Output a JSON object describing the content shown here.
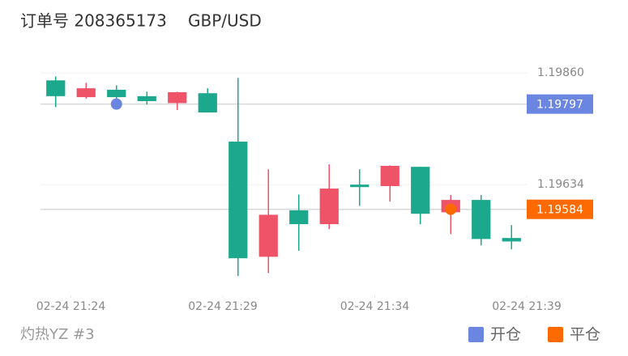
{
  "header": {
    "order": "订单号 208365173",
    "symbol": "GBP/USD"
  },
  "footer": {
    "account": "灼热YZ #3"
  },
  "chart_data": {
    "type": "candlestick",
    "x": [
      0,
      1,
      2,
      3,
      4,
      5,
      6,
      7,
      8,
      9,
      10,
      11,
      12,
      13,
      14,
      15
    ],
    "open": [
      1.19813,
      1.19829,
      1.19811,
      1.19803,
      1.19821,
      1.1978,
      1.19485,
      1.19573,
      1.19554,
      1.19626,
      1.19629,
      1.19672,
      1.19575,
      1.19603,
      1.19524,
      1.19519
    ],
    "high": [
      1.19853,
      1.1984,
      1.19835,
      1.19822,
      1.19822,
      1.19829,
      1.1985,
      1.19665,
      1.19614,
      1.19675,
      1.19665,
      1.19673,
      1.1967,
      1.19613,
      1.19613,
      1.19552
    ],
    "low": [
      1.19791,
      1.19808,
      1.19804,
      1.19796,
      1.19785,
      1.1978,
      1.19449,
      1.19455,
      1.195,
      1.19544,
      1.19591,
      1.196,
      1.19554,
      1.19534,
      1.19511,
      1.19503
    ],
    "close": [
      1.19845,
      1.19811,
      1.19826,
      1.19813,
      1.19799,
      1.19819,
      1.19721,
      1.19488,
      1.19582,
      1.19554,
      1.19634,
      1.19631,
      1.1967,
      1.19578,
      1.19603,
      1.19526
    ],
    "up_color": "#1ba88c",
    "down_color": "#ee5367",
    "xlim": [
      -0.5,
      15.5
    ],
    "xticks": [
      {
        "value": 0.5,
        "label": "02-24 21:24"
      },
      {
        "value": 5.5,
        "label": "02-24 21:29"
      },
      {
        "value": 10.5,
        "label": "02-24 21:34"
      },
      {
        "value": 15.5,
        "label": "02-24 21:39"
      }
    ],
    "ylim": [
      1.1941,
      1.19893
    ],
    "yticks": [
      {
        "value": 1.1986,
        "label": "1.19860"
      },
      1.19634
    ],
    "grid": true,
    "markers": [
      {
        "name": "开仓",
        "color": "#6b86e0",
        "x": 2,
        "value": 1.19797
      },
      {
        "name": "平仓",
        "color": "#ff6a00",
        "x": 13,
        "value": 1.19584
      }
    ]
  }
}
